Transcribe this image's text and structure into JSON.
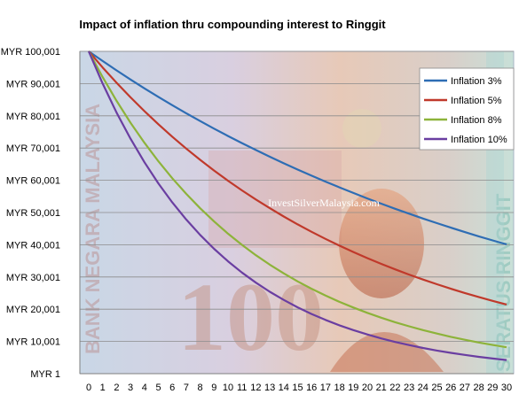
{
  "chart_data": {
    "type": "line",
    "title": "Impact of inflation thru compounding interest to Ringgit",
    "xlabel": "",
    "ylabel": "",
    "x": [
      0,
      1,
      2,
      3,
      4,
      5,
      6,
      7,
      8,
      9,
      10,
      11,
      12,
      13,
      14,
      15,
      16,
      17,
      18,
      19,
      20,
      21,
      22,
      23,
      24,
      25,
      26,
      27,
      28,
      29,
      30
    ],
    "y_ticks": [
      "MYR 1",
      "MYR 10,001",
      "MYR 20,001",
      "MYR 30,001",
      "MYR 40,001",
      "MYR 50,001",
      "MYR 60,001",
      "MYR 70,001",
      "MYR 80,001",
      "MYR 90,001",
      "MYR 100,001"
    ],
    "ylim": [
      1,
      100001
    ],
    "xlim": [
      0,
      30
    ],
    "grid": "horizontal",
    "legend_position": "right",
    "series": [
      {
        "name": "Inflation 3%",
        "color": "#2e6db4",
        "rate": 0.03,
        "values": [
          100000,
          97000,
          94090,
          91267,
          88529,
          85873,
          83297,
          80798,
          78374,
          76023,
          73742,
          71530,
          69384,
          67303,
          65284,
          63325,
          61425,
          59582,
          57795,
          56061,
          54379,
          52748,
          51166,
          49631,
          48142,
          46698,
          45296,
          43938,
          42619,
          41341,
          40101
        ]
      },
      {
        "name": "Inflation 5%",
        "color": "#c0392b",
        "rate": 0.05,
        "values": [
          100000,
          95000,
          90250,
          85738,
          81451,
          77378,
          73509,
          69834,
          66342,
          63025,
          59874,
          56880,
          54036,
          51334,
          48767,
          46329,
          44013,
          41812,
          39721,
          37735,
          35849,
          34056,
          32353,
          30736,
          29199,
          27739,
          26352,
          25034,
          23783,
          22594,
          21464
        ]
      },
      {
        "name": "Inflation 8%",
        "color": "#8db33a",
        "rate": 0.08,
        "values": [
          100000,
          92000,
          84640,
          77869,
          71639,
          65908,
          60636,
          55785,
          51322,
          47216,
          43439,
          39964,
          36767,
          33825,
          31119,
          28630,
          26339,
          24232,
          22293,
          20510,
          18869,
          17360,
          15971,
          14693,
          13518,
          12436,
          11441,
          10526,
          9684,
          8909,
          8197
        ]
      },
      {
        "name": "Inflation 10%",
        "color": "#6a3ea1",
        "rate": 0.1,
        "values": [
          100000,
          90000,
          81000,
          72900,
          65610,
          59049,
          53144,
          47830,
          43047,
          38742,
          34868,
          31381,
          28243,
          25419,
          22877,
          20589,
          18530,
          16677,
          15009,
          13509,
          12158,
          10942,
          9848,
          8863,
          7977,
          7179,
          6461,
          5815,
          5233,
          4710,
          4239
        ]
      }
    ],
    "watermark": "InvestSilverMalaysia.com"
  }
}
